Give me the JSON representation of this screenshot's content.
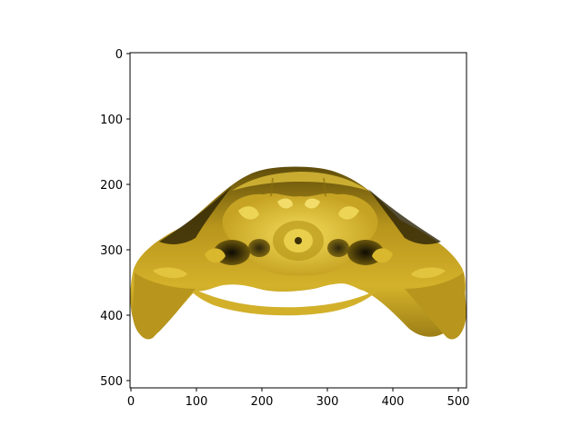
{
  "image": {
    "subject": "golden 3D-rendered surface",
    "colors": {
      "gold": "#c9a524",
      "gold_light": "#ead04a",
      "gold_dark": "#6e5a0e",
      "shadow": "#1c1606",
      "frame": "#000000",
      "background": "#ffffff"
    }
  },
  "axes": {
    "x_ticks": [
      "0",
      "100",
      "200",
      "300",
      "400",
      "500"
    ],
    "y_ticks": [
      "0",
      "100",
      "200",
      "300",
      "400",
      "500"
    ]
  }
}
